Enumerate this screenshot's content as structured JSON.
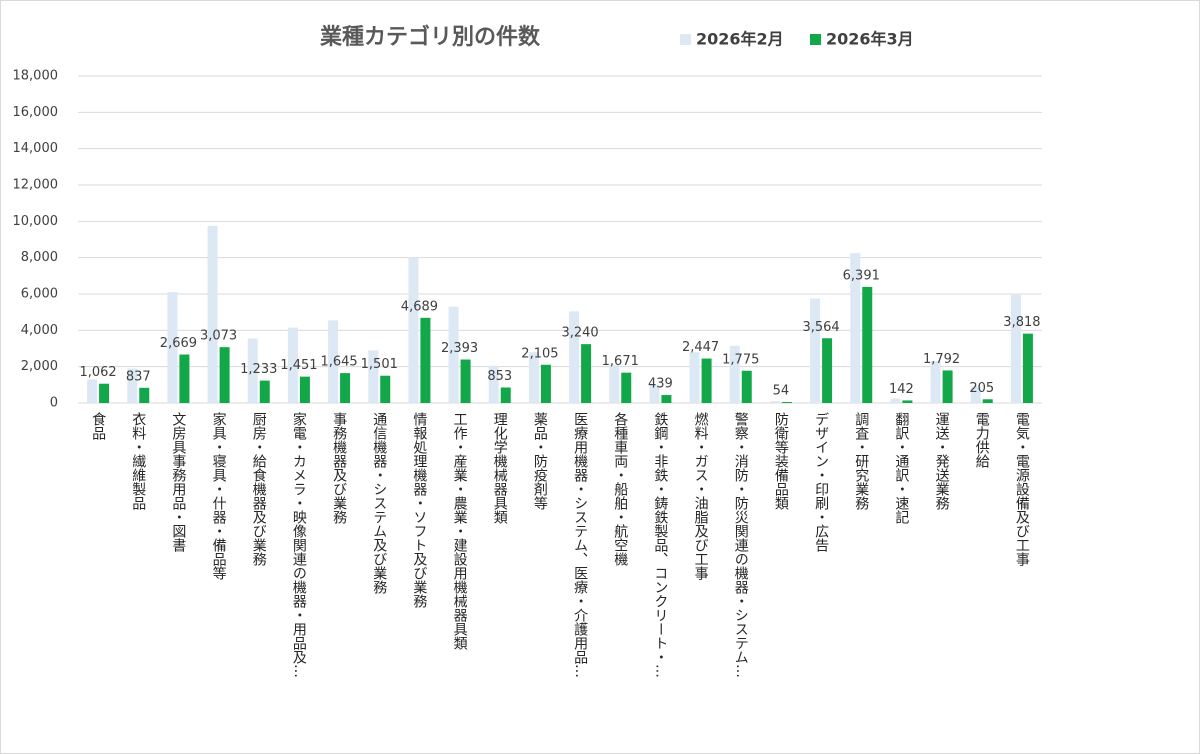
{
  "chart_data": {
    "type": "bar",
    "title": "業種カテゴリ別の件数",
    "categories": [
      "食品",
      "衣料・繊維製品",
      "文房具事務用品・図書",
      "家具・寝具・什器・備品等",
      "厨房・給食機器及び業務",
      "家電・カメラ・映像関連の機器・用品及…",
      "事務機器及び業務",
      "通信機器・システム及び業務",
      "情報処理機器・ソフト及び業務",
      "工作・産業・農業・建設用機械器具類",
      "理化学機械器具類",
      "薬品・防疫剤等",
      "医療用機器・システム、医療・介護用品…",
      "各種車両・船舶・航空機",
      "鉄鋼・非鉄・鋳鉄製品、コンクリート・…",
      "燃料・ガス・油脂及び工事",
      "警察・消防・防災関連の機器・システム…",
      "防衛等装備品類",
      "デザイン・印刷・広告",
      "調査・研究業務",
      "翻訳・通訳・速記",
      "運送・発送業務",
      "電力供給",
      "電気・電源設備及び工事"
    ],
    "series": [
      {
        "name": "2026年2月",
        "color": "#dde8f5",
        "values": [
          1300,
          1900,
          6100,
          9750,
          3550,
          4150,
          4550,
          2900,
          8000,
          5300,
          2050,
          2800,
          5050,
          2100,
          1000,
          2800,
          3150,
          100,
          5750,
          8250,
          250,
          2300,
          900,
          5950
        ]
      },
      {
        "name": "2026年3月",
        "color": "#12a84a",
        "values": [
          1062,
          837,
          2669,
          3073,
          1233,
          1451,
          1645,
          1501,
          4689,
          2393,
          853,
          2105,
          3240,
          1671,
          439,
          2447,
          1775,
          54,
          3564,
          6391,
          142,
          1792,
          205,
          3818
        ],
        "value_labels": [
          "1,062",
          "837",
          "2,669",
          "3,073",
          "1,233",
          "1,451",
          "1,645",
          "1,501",
          "4,689",
          "2,393",
          "853",
          "2,105",
          "3,240",
          "1,671",
          "439",
          "2,447",
          "1,775",
          "54",
          "3,564",
          "6,391",
          "142",
          "1,792",
          "205",
          "3,818"
        ]
      }
    ],
    "ylim": [
      0,
      18000
    ],
    "yticks": [
      0,
      {
        "value": 2000,
        "label": "2,000"
      },
      {
        "value": 4000,
        "label": "4,000"
      },
      {
        "value": 6000,
        "label": "6,000"
      },
      {
        "value": 8000,
        "label": "8,000"
      },
      {
        "value": 10000,
        "label": "10,000"
      },
      {
        "value": 12000,
        "label": "12,000"
      },
      {
        "value": 14000,
        "label": "14,000"
      },
      {
        "value": 16000,
        "label": "16,000"
      },
      {
        "value": 18000,
        "label": "18,000"
      }
    ],
    "grid": true
  }
}
